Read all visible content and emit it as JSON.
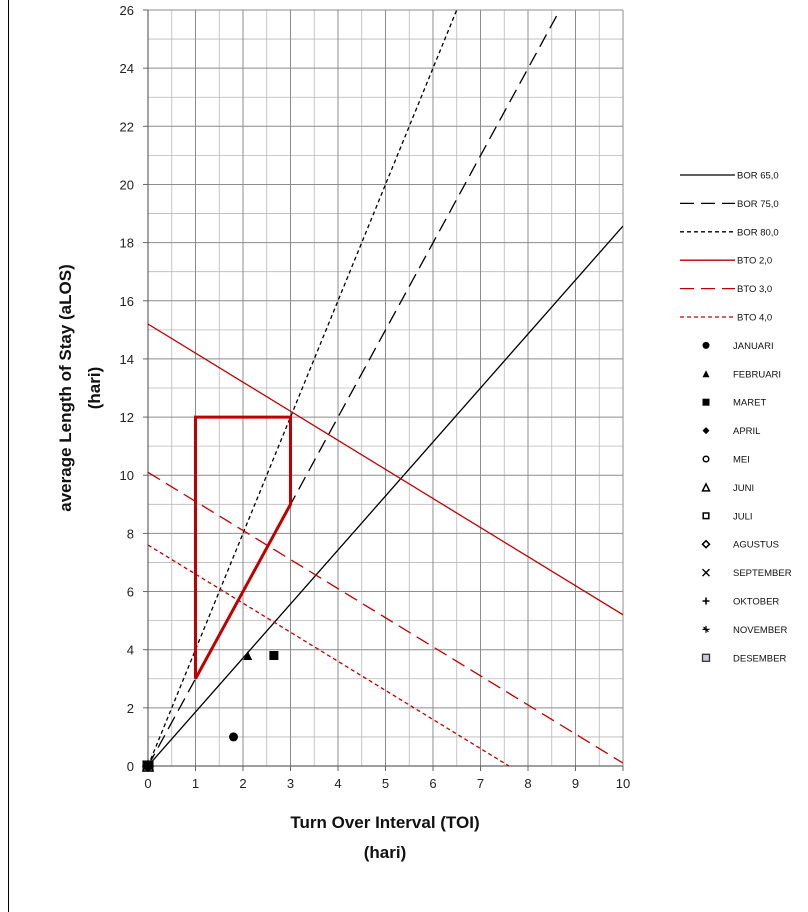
{
  "chart_data": {
    "type": "line",
    "xlabel_line1": "Turn Over Interval (TOI)",
    "xlabel_line2": "(hari)",
    "ylabel_line1": "average Length of Stay (aLOS)",
    "ylabel_line2": "(hari)",
    "xlim": [
      0,
      10
    ],
    "ylim": [
      0,
      26
    ],
    "x_ticks": [
      "0",
      "1",
      "2",
      "3",
      "4",
      "5",
      "6",
      "7",
      "8",
      "9",
      "10"
    ],
    "y_ticks": [
      "0",
      "2",
      "4",
      "6",
      "8",
      "10",
      "12",
      "14",
      "16",
      "18",
      "20",
      "22",
      "24",
      "26"
    ],
    "grid": true,
    "legend_position": "right",
    "lines": [
      {
        "name": "BOR 65,0",
        "color": "#000000",
        "dash": "solid",
        "points": [
          [
            0,
            0
          ],
          [
            10,
            18.57
          ]
        ]
      },
      {
        "name": "BOR 75,0",
        "color": "#000000",
        "dash": "long-dash",
        "points": [
          [
            0,
            0
          ],
          [
            8.67,
            26
          ]
        ]
      },
      {
        "name": "BOR 80,0",
        "color": "#000000",
        "dash": "short-dash",
        "points": [
          [
            0,
            0
          ],
          [
            6.5,
            26
          ]
        ]
      },
      {
        "name": "BTO 2,0",
        "color": "#c00000",
        "dash": "solid",
        "points": [
          [
            0,
            15.2
          ],
          [
            10,
            5.2
          ]
        ]
      },
      {
        "name": "BTO 3,0",
        "color": "#c00000",
        "dash": "long-dash",
        "points": [
          [
            0,
            10.1
          ],
          [
            10,
            0.1
          ]
        ]
      },
      {
        "name": "BTO 4,0",
        "color": "#c00000",
        "dash": "short-dash",
        "points": [
          [
            0,
            7.6
          ],
          [
            7.6,
            0
          ]
        ]
      }
    ],
    "efficiency_area": {
      "color": "#c00000",
      "points": [
        [
          1,
          3
        ],
        [
          1,
          12
        ],
        [
          3,
          12
        ],
        [
          3,
          9
        ],
        [
          1,
          3
        ]
      ]
    },
    "points": [
      {
        "name": "JANUARI",
        "marker": "circle",
        "x": 1.8,
        "y": 1.0
      },
      {
        "name": "FEBRUARI",
        "marker": "triangle",
        "x": 2.1,
        "y": 3.8
      },
      {
        "name": "MARET",
        "marker": "square",
        "x": 2.65,
        "y": 3.8
      },
      {
        "name": "APRIL",
        "marker": "diamond",
        "x": 0,
        "y": 0
      },
      {
        "name": "MEI",
        "marker": "open-circle",
        "x": 0,
        "y": 0
      },
      {
        "name": "JUNI",
        "marker": "open-triangle",
        "x": 0,
        "y": 0
      },
      {
        "name": "JULI",
        "marker": "open-square",
        "x": 0,
        "y": 0
      },
      {
        "name": "AGUSTUS",
        "marker": "open-diamond",
        "x": 0,
        "y": 0
      },
      {
        "name": "SEPTEMBER",
        "marker": "x",
        "x": 0,
        "y": 0
      },
      {
        "name": "OKTOBER",
        "marker": "plus",
        "x": 0,
        "y": 0
      },
      {
        "name": "NOVEMBER",
        "marker": "star",
        "x": 0,
        "y": 0
      },
      {
        "name": "DESEMBER",
        "marker": "filled-open-square",
        "x": 0,
        "y": 0
      }
    ]
  }
}
